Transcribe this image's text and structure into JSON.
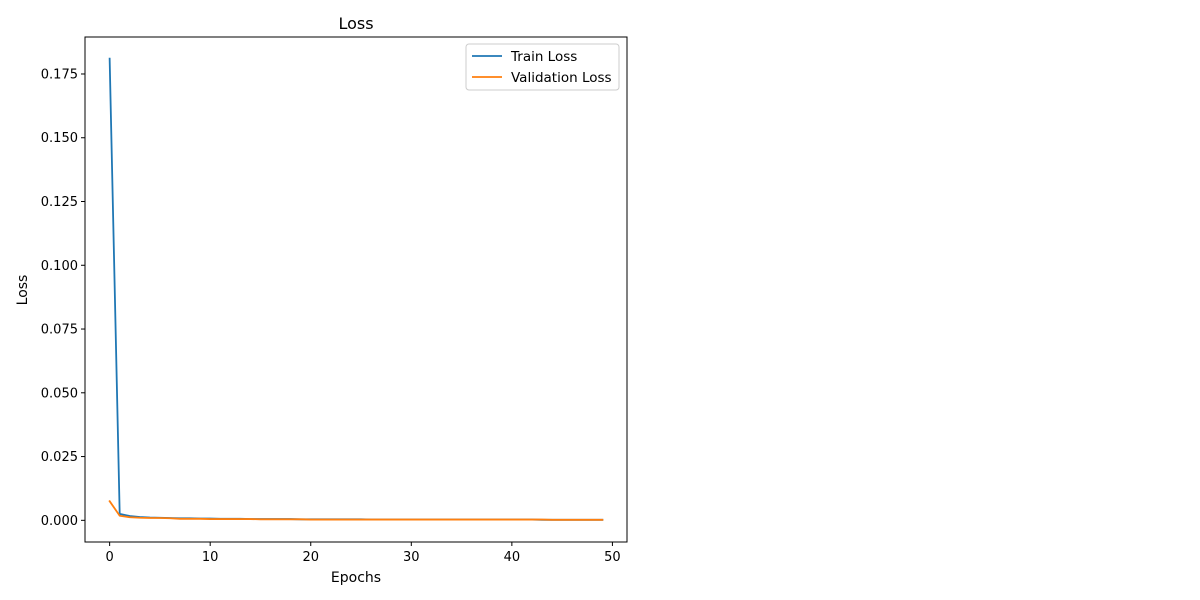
{
  "chart_data": {
    "type": "line",
    "title": "Loss",
    "xlabel": "Epochs",
    "ylabel": "Loss",
    "xlim": [
      -2.45,
      51.45
    ],
    "ylim": [
      -0.0085,
      0.1895
    ],
    "xticks": [
      0,
      10,
      20,
      30,
      40,
      50
    ],
    "yticks": [
      0.0,
      0.025,
      0.05,
      0.075,
      0.1,
      0.125,
      0.15,
      0.175
    ],
    "ytick_labels": [
      "0.000",
      "0.025",
      "0.050",
      "0.075",
      "0.100",
      "0.125",
      "0.150",
      "0.175"
    ],
    "grid": false,
    "legend_position": "upper right",
    "x": [
      0,
      1,
      2,
      3,
      4,
      5,
      6,
      7,
      8,
      9,
      10,
      11,
      12,
      13,
      14,
      15,
      16,
      17,
      18,
      19,
      20,
      21,
      22,
      23,
      24,
      25,
      26,
      27,
      28,
      29,
      30,
      31,
      32,
      33,
      34,
      35,
      36,
      37,
      38,
      39,
      40,
      41,
      42,
      43,
      44,
      45,
      46,
      47,
      48,
      49
    ],
    "series": [
      {
        "name": "Train Loss",
        "color": "#1f77b4",
        "values": [
          0.181,
          0.0025,
          0.0017,
          0.0013,
          0.0011,
          0.001,
          0.0009,
          0.0008,
          0.0008,
          0.0007,
          0.0007,
          0.0006,
          0.0006,
          0.0006,
          0.0005,
          0.0005,
          0.0005,
          0.0005,
          0.0005,
          0.0004,
          0.0004,
          0.0004,
          0.0004,
          0.0004,
          0.0004,
          0.0004,
          0.0003,
          0.0003,
          0.0003,
          0.0003,
          0.0003,
          0.0003,
          0.0003,
          0.0003,
          0.0003,
          0.0003,
          0.0003,
          0.0003,
          0.0003,
          0.0003,
          0.0003,
          0.0003,
          0.0003,
          0.0002,
          0.0002,
          0.0002,
          0.0002,
          0.0002,
          0.0002,
          0.0002
        ]
      },
      {
        "name": "Validation Loss",
        "color": "#ff7f0e",
        "values": [
          0.0075,
          0.0018,
          0.0012,
          0.001,
          0.0009,
          0.0009,
          0.0008,
          0.0006,
          0.0006,
          0.0006,
          0.0005,
          0.0005,
          0.0005,
          0.0005,
          0.0005,
          0.0004,
          0.0004,
          0.0004,
          0.0004,
          0.0004,
          0.0003,
          0.0003,
          0.0003,
          0.0003,
          0.0003,
          0.0003,
          0.0003,
          0.0003,
          0.0003,
          0.0003,
          0.0003,
          0.0003,
          0.0003,
          0.0003,
          0.0003,
          0.0003,
          0.0003,
          0.0003,
          0.0003,
          0.0003,
          0.0003,
          0.0003,
          0.0003,
          0.0003,
          0.0002,
          0.0002,
          0.0002,
          0.0002,
          0.0002,
          0.0002
        ]
      }
    ]
  }
}
